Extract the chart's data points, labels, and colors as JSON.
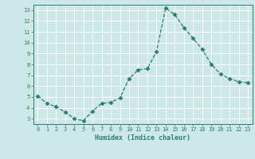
{
  "x": [
    0,
    1,
    2,
    3,
    4,
    5,
    6,
    7,
    8,
    9,
    10,
    11,
    12,
    13,
    14,
    15,
    16,
    17,
    18,
    19,
    20,
    21,
    22,
    23
  ],
  "y": [
    5.1,
    4.4,
    4.1,
    3.6,
    3.0,
    2.8,
    3.7,
    4.4,
    4.5,
    4.9,
    6.7,
    7.5,
    7.6,
    9.2,
    13.2,
    12.6,
    11.4,
    10.4,
    9.4,
    8.0,
    7.1,
    6.7,
    6.4,
    6.3
  ],
  "line_color": "#2e7d6e",
  "marker": "D",
  "marker_size": 2.5,
  "xlabel": "Humidex (Indice chaleur)",
  "ylim": [
    2.5,
    13.5
  ],
  "xlim": [
    -0.5,
    23.5
  ],
  "yticks": [
    3,
    4,
    5,
    6,
    7,
    8,
    9,
    10,
    11,
    12,
    13
  ],
  "xticks": [
    0,
    1,
    2,
    3,
    4,
    5,
    6,
    7,
    8,
    9,
    10,
    11,
    12,
    13,
    14,
    15,
    16,
    17,
    18,
    19,
    20,
    21,
    22,
    23
  ],
  "bg_color": "#cce8e8",
  "grid_color": "#ffffff",
  "tick_color": "#2e7d6e",
  "label_color": "#2e7d6e",
  "axis_color": "#2e7d6e",
  "tick_fontsize": 5.0,
  "xlabel_fontsize": 6.0
}
